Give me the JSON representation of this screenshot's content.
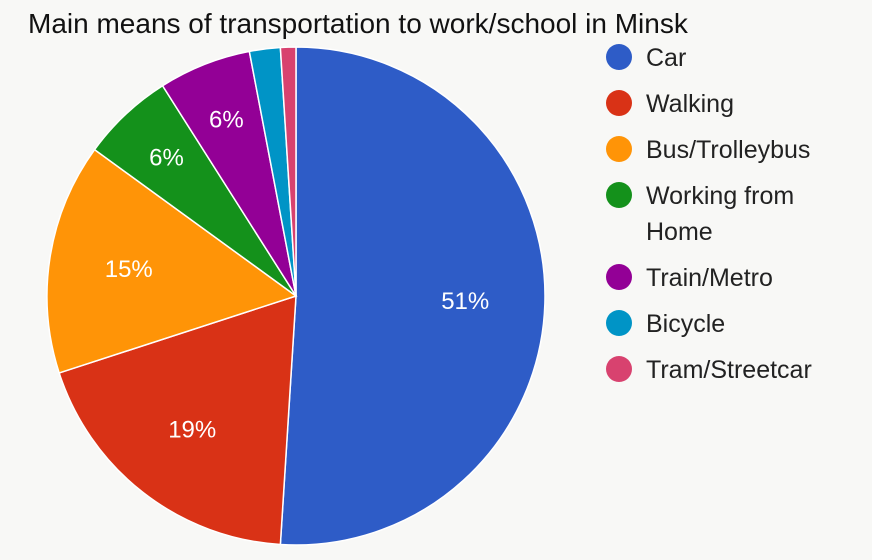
{
  "chart_data": {
    "type": "pie",
    "title": "Main means of transportation to work/school in Minsk",
    "legend_position": "right",
    "categories": [
      "Car",
      "Walking",
      "Bus/Trolleybus",
      "Working from Home",
      "Train/Metro",
      "Bicycle",
      "Tram/Streetcar"
    ],
    "values": [
      51,
      19,
      15,
      6,
      6,
      2,
      1
    ],
    "data_labels": [
      "51%",
      "19%",
      "15%",
      "6%",
      "6%",
      "",
      ""
    ],
    "colors": [
      "#2e5cc7",
      "#d93216",
      "#ff9407",
      "#14911b",
      "#930096",
      "#0094c6",
      "#d8426f"
    ],
    "legend_labels": [
      "Car",
      "Walking",
      "Bus/Trolleybus",
      "Working from\nHome",
      "Train/Metro",
      "Bicycle",
      "Tram/Streetcar"
    ]
  }
}
